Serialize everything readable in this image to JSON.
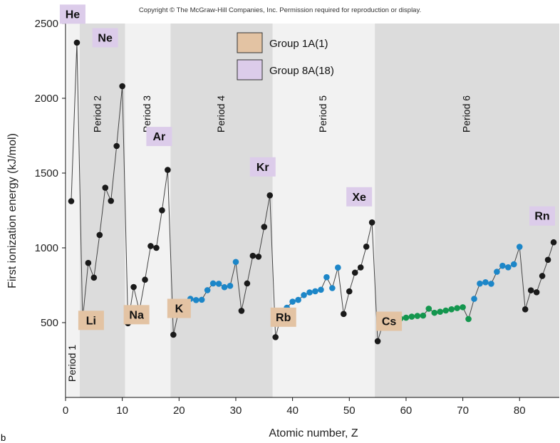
{
  "copyright": "Copyright © The McGraw-Hill Companies, Inc. Permission required for reproduction or display.",
  "corner_mark": "b",
  "chart_data": {
    "type": "line",
    "title": "",
    "xlabel": "Atomic number, Z",
    "ylabel": "First ionization energy (kJ/mol)",
    "xlim": [
      0,
      87
    ],
    "ylim": [
      0,
      2500
    ],
    "xticks": [
      0,
      10,
      20,
      30,
      40,
      50,
      60,
      70,
      80
    ],
    "yticks": [
      500,
      1000,
      1500,
      2000,
      2500
    ],
    "grid": false,
    "legend": {
      "placement": "top-center",
      "entries": [
        {
          "label": "Group 1A(1)",
          "color": "#e3c3a3"
        },
        {
          "label": "Group 8A(18)",
          "color": "#dcccea"
        }
      ]
    },
    "periods": [
      {
        "label": "Period 1",
        "z_start": 0.3,
        "z_end": 2.5,
        "shade": "#f2f2f2"
      },
      {
        "label": "Period 2",
        "z_start": 2.5,
        "z_end": 10.5,
        "shade": "#dcdcdc"
      },
      {
        "label": "Period 3",
        "z_start": 10.5,
        "z_end": 18.5,
        "shade": "#f2f2f2"
      },
      {
        "label": "Period 4",
        "z_start": 18.5,
        "z_end": 36.5,
        "shade": "#dcdcdc"
      },
      {
        "label": "Period 5",
        "z_start": 36.5,
        "z_end": 54.5,
        "shade": "#f2f2f2"
      },
      {
        "label": "Period 6",
        "z_start": 54.5,
        "z_end": 87,
        "shade": "#dcdcdc"
      }
    ],
    "series": [
      {
        "points": [
          [
            1,
            1312,
            "main"
          ],
          [
            2,
            2372,
            "main"
          ],
          [
            3,
            520,
            "main"
          ],
          [
            4,
            899,
            "main"
          ],
          [
            5,
            801,
            "main"
          ],
          [
            6,
            1086,
            "main"
          ],
          [
            7,
            1402,
            "main"
          ],
          [
            8,
            1314,
            "main"
          ],
          [
            9,
            1681,
            "main"
          ],
          [
            10,
            2081,
            "main"
          ],
          [
            11,
            496,
            "main"
          ],
          [
            12,
            738,
            "main"
          ],
          [
            13,
            578,
            "main"
          ],
          [
            14,
            787,
            "main"
          ],
          [
            15,
            1012,
            "main"
          ],
          [
            16,
            1000,
            "main"
          ],
          [
            17,
            1251,
            "main"
          ],
          [
            18,
            1521,
            "main"
          ],
          [
            19,
            419,
            "main"
          ],
          [
            20,
            590,
            "main"
          ],
          [
            21,
            633,
            "transition"
          ],
          [
            22,
            659,
            "transition"
          ],
          [
            23,
            651,
            "transition"
          ],
          [
            24,
            653,
            "transition"
          ],
          [
            25,
            717,
            "transition"
          ],
          [
            26,
            762,
            "transition"
          ],
          [
            27,
            760,
            "transition"
          ],
          [
            28,
            737,
            "transition"
          ],
          [
            29,
            746,
            "transition"
          ],
          [
            30,
            906,
            "transition"
          ],
          [
            31,
            579,
            "main"
          ],
          [
            32,
            762,
            "main"
          ],
          [
            33,
            947,
            "main"
          ],
          [
            34,
            941,
            "main"
          ],
          [
            35,
            1140,
            "main"
          ],
          [
            36,
            1351,
            "main"
          ],
          [
            37,
            403,
            "main"
          ],
          [
            38,
            549,
            "main"
          ],
          [
            39,
            600,
            "transition"
          ],
          [
            40,
            640,
            "transition"
          ],
          [
            41,
            652,
            "transition"
          ],
          [
            42,
            684,
            "transition"
          ],
          [
            43,
            702,
            "transition"
          ],
          [
            44,
            710,
            "transition"
          ],
          [
            45,
            720,
            "transition"
          ],
          [
            46,
            804,
            "transition"
          ],
          [
            47,
            731,
            "transition"
          ],
          [
            48,
            868,
            "transition"
          ],
          [
            49,
            558,
            "main"
          ],
          [
            50,
            709,
            "main"
          ],
          [
            51,
            834,
            "main"
          ],
          [
            52,
            869,
            "main"
          ],
          [
            53,
            1008,
            "main"
          ],
          [
            54,
            1170,
            "main"
          ],
          [
            55,
            376,
            "main"
          ],
          [
            56,
            503,
            "main"
          ],
          [
            57,
            538,
            "transition"
          ],
          [
            58,
            534,
            "inner"
          ],
          [
            59,
            527,
            "inner"
          ],
          [
            60,
            533,
            "inner"
          ],
          [
            61,
            540,
            "inner"
          ],
          [
            62,
            545,
            "inner"
          ],
          [
            63,
            547,
            "inner"
          ],
          [
            64,
            593,
            "inner"
          ],
          [
            65,
            566,
            "inner"
          ],
          [
            66,
            573,
            "inner"
          ],
          [
            67,
            581,
            "inner"
          ],
          [
            68,
            589,
            "inner"
          ],
          [
            69,
            597,
            "inner"
          ],
          [
            70,
            603,
            "inner"
          ],
          [
            71,
            524,
            "inner"
          ],
          [
            72,
            659,
            "transition"
          ],
          [
            73,
            761,
            "transition"
          ],
          [
            74,
            770,
            "transition"
          ],
          [
            75,
            760,
            "transition"
          ],
          [
            76,
            840,
            "transition"
          ],
          [
            77,
            880,
            "transition"
          ],
          [
            78,
            870,
            "transition"
          ],
          [
            79,
            890,
            "transition"
          ],
          [
            80,
            1007,
            "transition"
          ],
          [
            81,
            589,
            "main"
          ],
          [
            82,
            716,
            "main"
          ],
          [
            83,
            703,
            "main"
          ],
          [
            84,
            812,
            "main"
          ],
          [
            85,
            920,
            "main"
          ],
          [
            86,
            1037,
            "main"
          ]
        ]
      }
    ],
    "point_colors": {
      "main": "#1a1a1a",
      "transition": "#1c86c8",
      "inner": "#14964e"
    },
    "element_labels": [
      {
        "text": "He",
        "z": 2,
        "group": "8A"
      },
      {
        "text": "Ne",
        "z": 10,
        "group": "8A"
      },
      {
        "text": "Ar",
        "z": 18,
        "group": "8A"
      },
      {
        "text": "Kr",
        "z": 36,
        "group": "8A"
      },
      {
        "text": "Xe",
        "z": 54,
        "group": "8A"
      },
      {
        "text": "Rn",
        "z": 86,
        "group": "8A"
      },
      {
        "text": "Li",
        "z": 3,
        "group": "1A"
      },
      {
        "text": "Na",
        "z": 11,
        "group": "1A"
      },
      {
        "text": "K",
        "z": 19,
        "group": "1A"
      },
      {
        "text": "Rb",
        "z": 37,
        "group": "1A"
      },
      {
        "text": "Cs",
        "z": 55,
        "group": "1A"
      }
    ]
  }
}
